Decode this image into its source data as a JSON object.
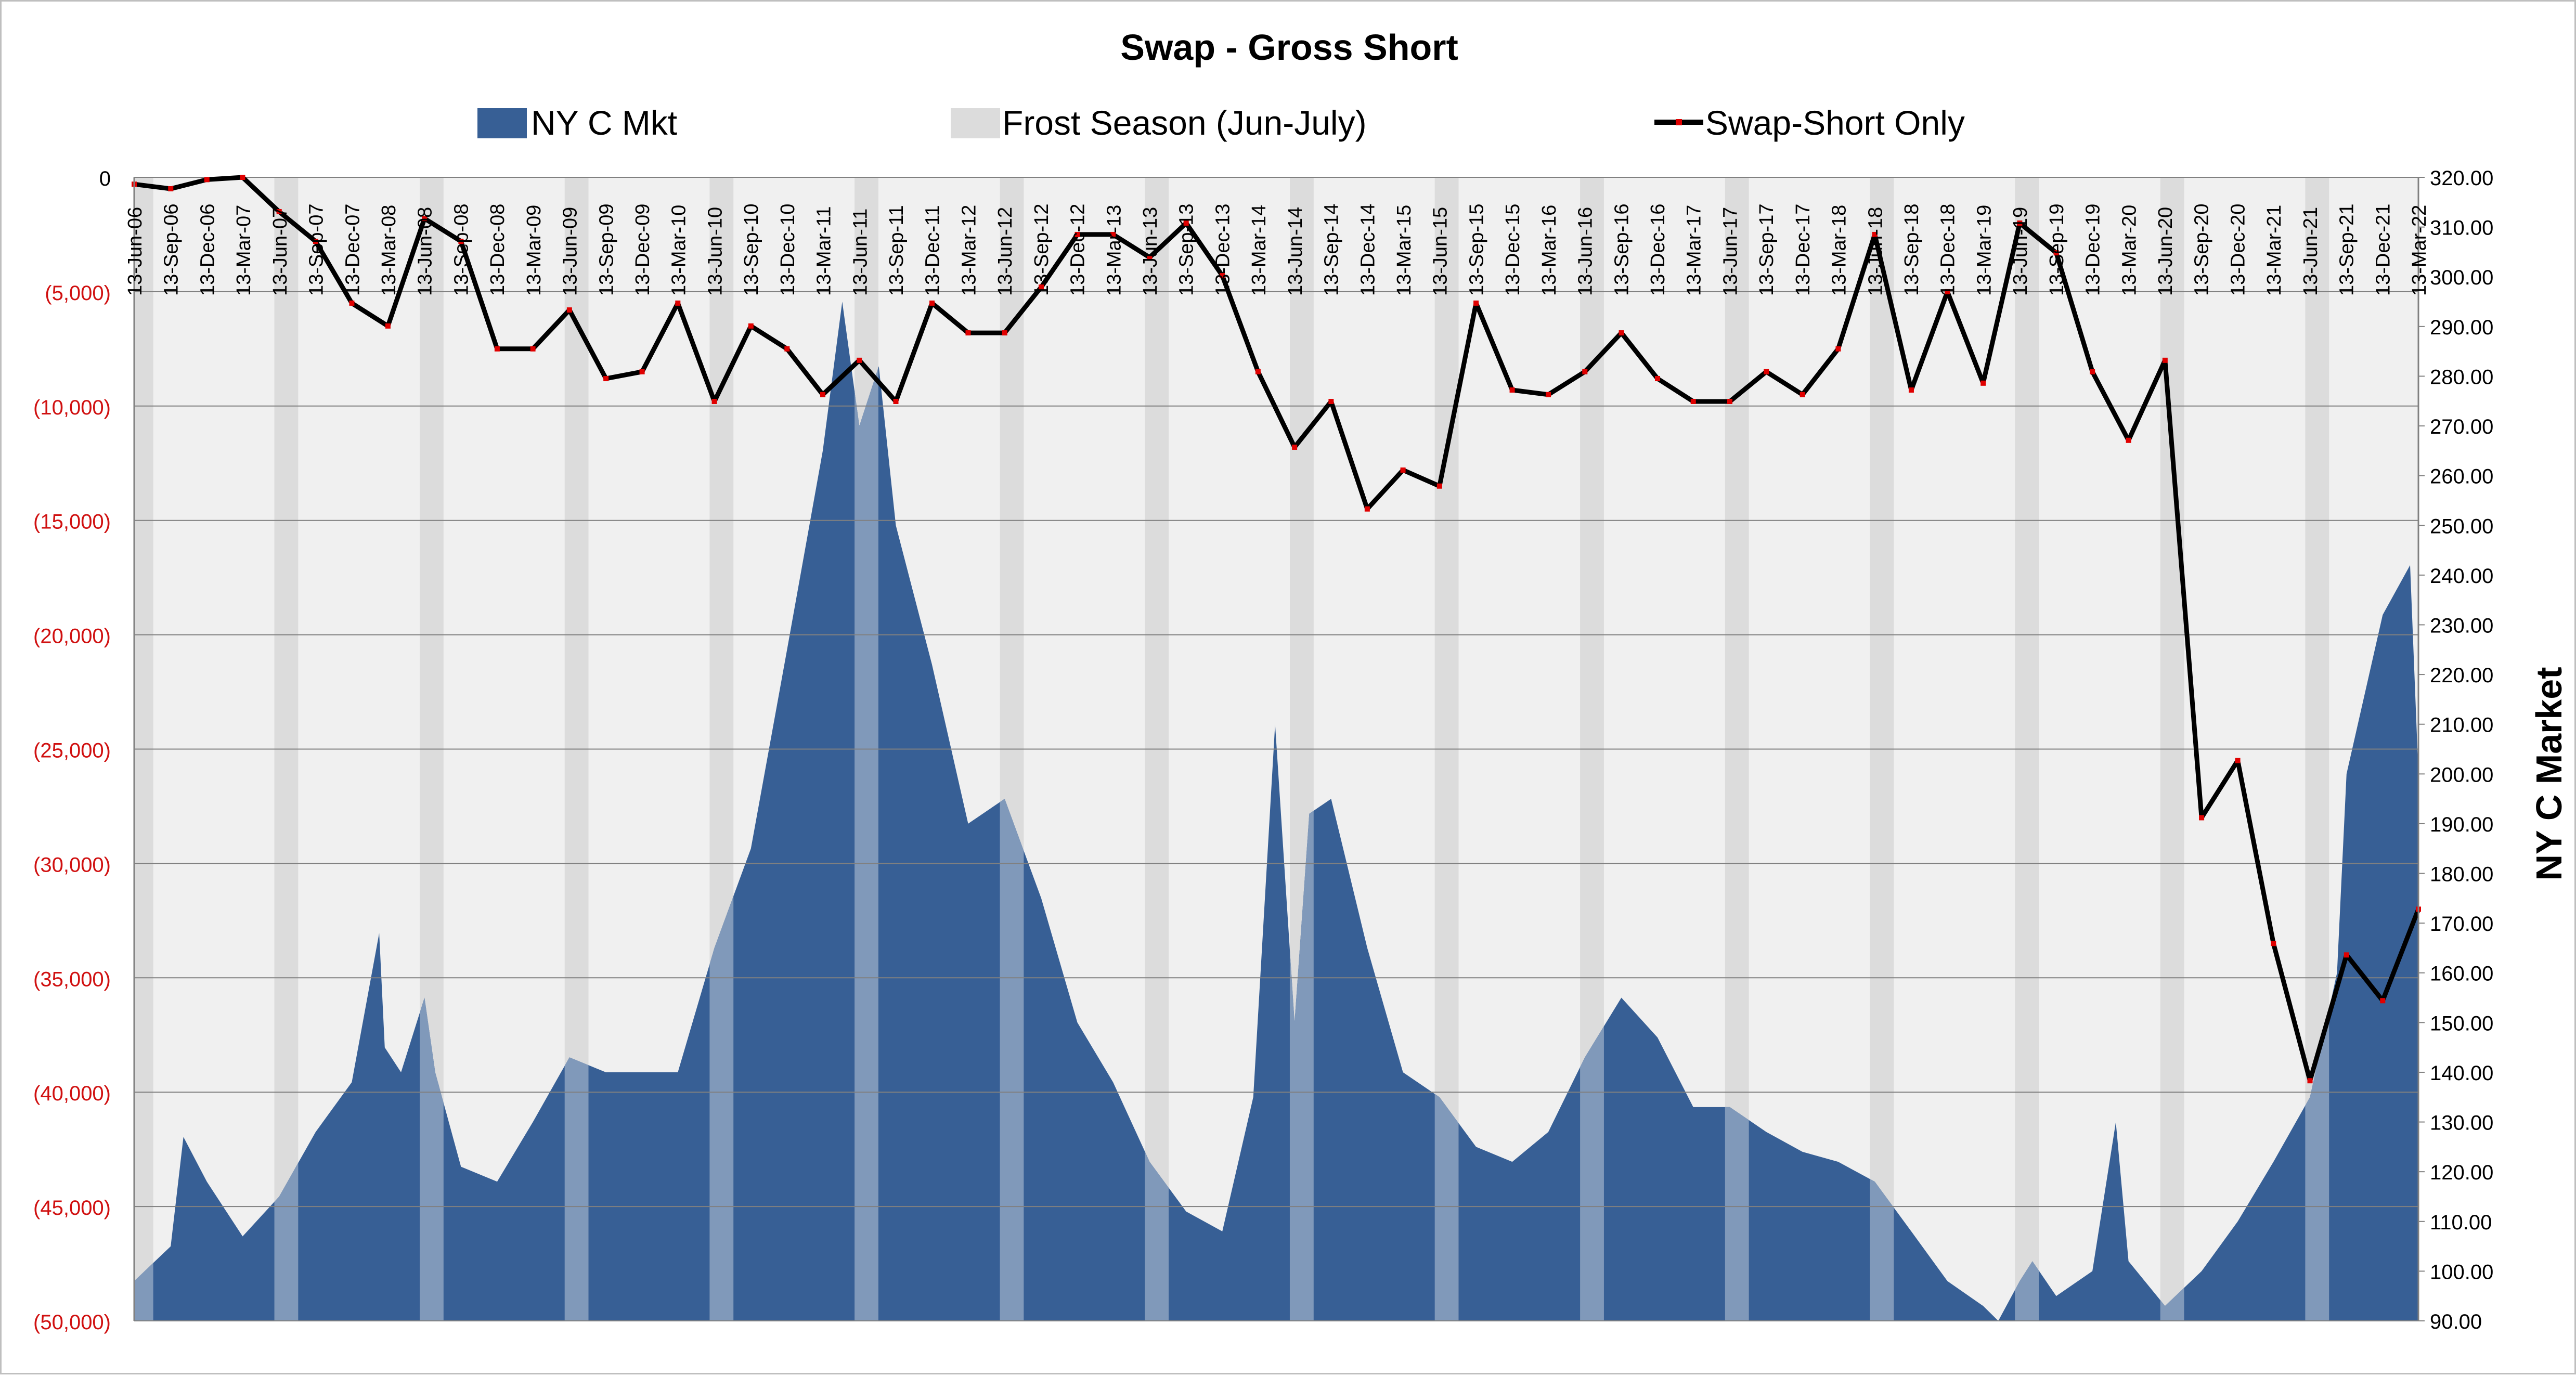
{
  "chart_data": {
    "type": "line",
    "title": "Swap - Gross Short",
    "xlabel": "",
    "ylabel_left": "",
    "ylabel_right": "NY C Market",
    "legend_placement": "top",
    "grid": true,
    "colors": {
      "area": "#375f95",
      "area_in_frost": "#8099ba",
      "frost_band": "#dcdcdc",
      "plot_bg": "#f0f0f0",
      "line": "#000000",
      "line_marker": "#e00000",
      "left_tick_text": "#d01010"
    },
    "legend": [
      {
        "label": "NY C Mkt",
        "kind": "area"
      },
      {
        "label": "Frost Season (Jun-July)",
        "kind": "band"
      },
      {
        "label": "Swap-Short Only",
        "kind": "line"
      }
    ],
    "x_range": [
      "2006-06-13",
      "2022-03-13"
    ],
    "ylim_left": [
      -50000,
      0
    ],
    "ylim_right": [
      90,
      320
    ],
    "yticks_left": [
      "0",
      "(5,000)",
      "(10,000)",
      "(15,000)",
      "(20,000)",
      "(25,000)",
      "(30,000)",
      "(35,000)",
      "(40,000)",
      "(45,000)",
      "(50,000)"
    ],
    "yticks_right": [
      "320.00",
      "310.00",
      "300.00",
      "290.00",
      "280.00",
      "270.00",
      "260.00",
      "250.00",
      "240.00",
      "230.00",
      "220.00",
      "210.00",
      "200.00",
      "190.00",
      "180.00",
      "170.00",
      "160.00",
      "150.00",
      "140.00",
      "130.00",
      "120.00",
      "110.00",
      "100.00",
      "90.00"
    ],
    "xticks": [
      "13-Jun-06",
      "13-Sep-06",
      "13-Dec-06",
      "13-Mar-07",
      "13-Jun-07",
      "13-Sep-07",
      "13-Dec-07",
      "13-Mar-08",
      "13-Jun-08",
      "13-Sep-08",
      "13-Dec-08",
      "13-Mar-09",
      "13-Jun-09",
      "13-Sep-09",
      "13-Dec-09",
      "13-Mar-10",
      "13-Jun-10",
      "13-Sep-10",
      "13-Dec-10",
      "13-Mar-11",
      "13-Jun-11",
      "13-Sep-11",
      "13-Dec-11",
      "13-Mar-12",
      "13-Jun-12",
      "13-Sep-12",
      "13-Dec-12",
      "13-Mar-13",
      "13-Jun-13",
      "13-Sep-13",
      "13-Dec-13",
      "13-Mar-14",
      "13-Jun-14",
      "13-Sep-14",
      "13-Dec-14",
      "13-Mar-15",
      "13-Jun-15",
      "13-Sep-15",
      "13-Dec-15",
      "13-Mar-16",
      "13-Jun-16",
      "13-Sep-16",
      "13-Dec-16",
      "13-Mar-17",
      "13-Jun-17",
      "13-Sep-17",
      "13-Dec-17",
      "13-Mar-18",
      "13-Jun-18",
      "13-Sep-18",
      "13-Dec-18",
      "13-Mar-19",
      "13-Jun-19",
      "13-Sep-19",
      "13-Dec-19",
      "13-Mar-20",
      "13-Jun-20",
      "13-Sep-20",
      "13-Dec-20",
      "13-Mar-21",
      "13-Jun-21",
      "13-Sep-21",
      "13-Dec-21",
      "13-Mar-22"
    ],
    "frost_seasons": [
      [
        "2006-06-01",
        "2006-07-31"
      ],
      [
        "2007-06-01",
        "2007-07-31"
      ],
      [
        "2008-06-01",
        "2008-07-31"
      ],
      [
        "2009-06-01",
        "2009-07-31"
      ],
      [
        "2010-06-01",
        "2010-07-31"
      ],
      [
        "2011-06-01",
        "2011-07-31"
      ],
      [
        "2012-06-01",
        "2012-07-31"
      ],
      [
        "2013-06-01",
        "2013-07-31"
      ],
      [
        "2014-06-01",
        "2014-07-31"
      ],
      [
        "2015-06-01",
        "2015-07-31"
      ],
      [
        "2016-06-01",
        "2016-07-31"
      ],
      [
        "2017-06-01",
        "2017-07-31"
      ],
      [
        "2018-06-01",
        "2018-07-31"
      ],
      [
        "2019-06-01",
        "2019-07-31"
      ],
      [
        "2020-06-01",
        "2020-07-31"
      ],
      [
        "2021-06-01",
        "2021-07-31"
      ]
    ],
    "series": [
      {
        "name": "NY C Mkt",
        "axis": "right",
        "kind": "area",
        "x": [
          "2006-06-13",
          "2006-09-13",
          "2006-10-15",
          "2006-12-13",
          "2007-03-13",
          "2007-06-13",
          "2007-09-13",
          "2007-12-13",
          "2008-02-20",
          "2008-03-05",
          "2008-04-15",
          "2008-06-13",
          "2008-07-10",
          "2008-09-13",
          "2008-12-13",
          "2009-03-13",
          "2009-06-13",
          "2009-09-13",
          "2009-12-13",
          "2010-03-13",
          "2010-06-13",
          "2010-09-13",
          "2010-12-13",
          "2011-03-13",
          "2011-05-01",
          "2011-06-13",
          "2011-08-01",
          "2011-09-13",
          "2011-12-13",
          "2012-03-13",
          "2012-06-13",
          "2012-09-13",
          "2012-12-13",
          "2013-03-13",
          "2013-06-13",
          "2013-09-13",
          "2013-12-13",
          "2014-03-01",
          "2014-04-25",
          "2014-06-13",
          "2014-07-20",
          "2014-09-13",
          "2014-12-13",
          "2015-03-13",
          "2015-06-13",
          "2015-09-13",
          "2015-12-13",
          "2016-03-13",
          "2016-06-13",
          "2016-09-13",
          "2016-12-13",
          "2017-03-13",
          "2017-06-13",
          "2017-09-13",
          "2017-12-13",
          "2018-03-13",
          "2018-06-13",
          "2018-09-13",
          "2018-12-13",
          "2019-03-13",
          "2019-04-20",
          "2019-06-13",
          "2019-07-15",
          "2019-09-13",
          "2019-12-13",
          "2020-02-10",
          "2020-03-13",
          "2020-06-13",
          "2020-09-13",
          "2020-12-13",
          "2021-03-13",
          "2021-06-13",
          "2021-08-20",
          "2021-09-13",
          "2021-12-13",
          "2022-02-20",
          "2022-03-13"
        ],
        "values": [
          98,
          105,
          127,
          118,
          107,
          115,
          128,
          138,
          168,
          145,
          140,
          155,
          140,
          121,
          118,
          130,
          143,
          140,
          140,
          140,
          165,
          185,
          225,
          265,
          295,
          270,
          282,
          250,
          222,
          190,
          195,
          175,
          150,
          138,
          122,
          112,
          108,
          135,
          210,
          150,
          192,
          195,
          165,
          140,
          135,
          125,
          122,
          128,
          143,
          155,
          147,
          133,
          133,
          128,
          124,
          122,
          118,
          108,
          98,
          93,
          90,
          98,
          102,
          95,
          100,
          130,
          102,
          93,
          100,
          110,
          122,
          135,
          160,
          200,
          232,
          242,
          200
        ]
      },
      {
        "name": "Swap-Short Only",
        "axis": "left",
        "kind": "line",
        "x": [
          "2006-06-13",
          "2006-09-13",
          "2006-12-13",
          "2007-03-13",
          "2007-06-13",
          "2007-09-13",
          "2007-12-13",
          "2008-03-13",
          "2008-06-13",
          "2008-09-13",
          "2008-12-13",
          "2009-03-13",
          "2009-06-13",
          "2009-09-13",
          "2009-12-13",
          "2010-03-13",
          "2010-06-13",
          "2010-09-13",
          "2010-12-13",
          "2011-03-13",
          "2011-06-13",
          "2011-09-13",
          "2011-12-13",
          "2012-03-13",
          "2012-06-13",
          "2012-09-13",
          "2012-12-13",
          "2013-03-13",
          "2013-06-13",
          "2013-09-13",
          "2013-12-13",
          "2014-03-13",
          "2014-06-13",
          "2014-09-13",
          "2014-12-13",
          "2015-03-13",
          "2015-06-13",
          "2015-09-13",
          "2015-12-13",
          "2016-03-13",
          "2016-06-13",
          "2016-09-13",
          "2016-12-13",
          "2017-03-13",
          "2017-06-13",
          "2017-09-13",
          "2017-12-13",
          "2018-03-13",
          "2018-06-13",
          "2018-09-13",
          "2018-12-13",
          "2019-03-13",
          "2019-06-13",
          "2019-09-13",
          "2019-12-13",
          "2020-03-13",
          "2020-06-13",
          "2020-09-13",
          "2020-12-13",
          "2021-03-13",
          "2021-06-13",
          "2021-09-13",
          "2021-12-13",
          "2022-03-13"
        ],
        "values": [
          -300,
          -500,
          -100,
          0,
          -1500,
          -2800,
          -5500,
          -6500,
          -1800,
          -2800,
          -7500,
          -7500,
          -5800,
          -8800,
          -8500,
          -5500,
          -9800,
          -6500,
          -7500,
          -9500,
          -8000,
          -9800,
          -5500,
          -6800,
          -6800,
          -4800,
          -2500,
          -2500,
          -3500,
          -2000,
          -4300,
          -8500,
          -11800,
          -9800,
          -14500,
          -12800,
          -13500,
          -5500,
          -9300,
          -9500,
          -8500,
          -6800,
          -8800,
          -9800,
          -9800,
          -8500,
          -9500,
          -7500,
          -2500,
          -9300,
          -5000,
          -9000,
          -2000,
          -3300,
          -8500,
          -11500,
          -8000,
          -28000,
          -25500,
          -33500,
          -39500,
          -34000,
          -36000,
          -32000
        ]
      }
    ]
  }
}
